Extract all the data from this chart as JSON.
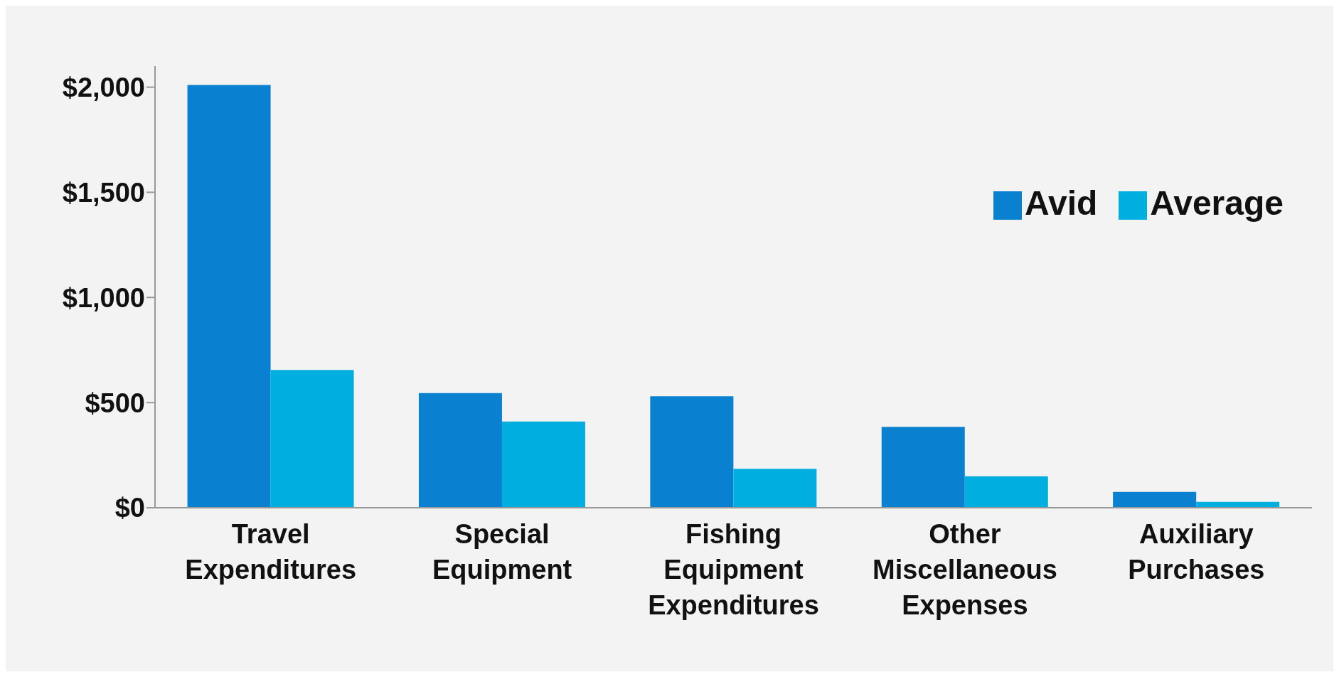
{
  "chart_data": {
    "type": "bar",
    "categories": [
      "Travel Expenditures",
      "Special Equipment",
      "Fishing Equipment Expenditures",
      "Other Miscellaneous Expenses",
      "Auxiliary Purchases"
    ],
    "series": [
      {
        "name": "Avid",
        "color": "#0a80d0",
        "values": [
          2010,
          545,
          530,
          385,
          75
        ]
      },
      {
        "name": "Average",
        "color": "#00aee0",
        "values": [
          655,
          410,
          185,
          150,
          28
        ]
      }
    ],
    "ylim": [
      0,
      2100
    ],
    "yticks": [
      {
        "value": 0,
        "label": "$0"
      },
      {
        "value": 500,
        "label": "$500"
      },
      {
        "value": 1000,
        "label": "$1,000"
      },
      {
        "value": 1500,
        "label": "$1,500"
      },
      {
        "value": 2000,
        "label": "$2,000"
      }
    ],
    "grid": false,
    "legend": "right"
  }
}
